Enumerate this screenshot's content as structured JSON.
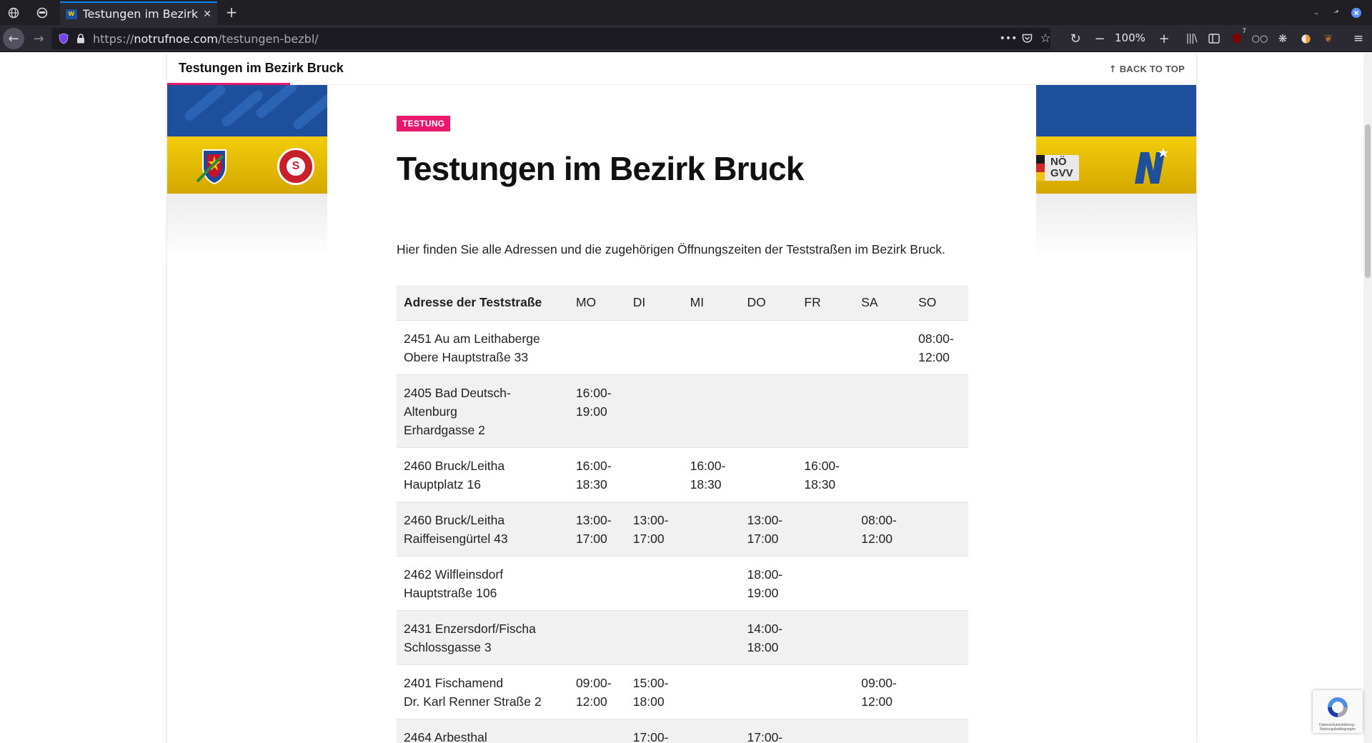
{
  "browser": {
    "tab_title": "Testungen im Bezirk Bruck",
    "favicon_text": "W",
    "url_scheme": "https://",
    "url_host": "notrufnoe.com",
    "url_path": "/testungen-bezbl/",
    "zoom": "100%",
    "extension_badge": "7",
    "colors": {
      "accent": "#0a84ff",
      "toolbar": "#2b2a33"
    }
  },
  "header": {
    "title": "Testungen im Bezirk Bruck",
    "back_to_top": "BACK TO TOP"
  },
  "banner": {
    "logo_cross_letter": "S",
    "logo_gvv_line1": "NÖ",
    "logo_gvv_line2": "GVV",
    "colors": {
      "blue": "#1e4f9c",
      "yellow": "#f2cc0a"
    }
  },
  "article": {
    "category": "TESTUNG",
    "title": "Testungen im Bezirk Bruck",
    "intro": "Hier finden Sie alle Adressen und die zugehörigen Öffnungszeiten der Teststraßen im Bezirk Bruck.",
    "accent_color": "#e8186d"
  },
  "table": {
    "headers": [
      "Adresse der Teststraße",
      "MO",
      "DI",
      "MI",
      "DO",
      "FR",
      "SA",
      "SO"
    ],
    "rows": [
      {
        "addr": [
          "2451 Au am Leithaberge",
          "Obere Hauptstraße 33"
        ],
        "times": [
          "",
          "",
          "",
          "",
          "",
          "",
          "08:00-\n12:00"
        ]
      },
      {
        "addr": [
          "2405 Bad Deutsch-",
          "Altenburg",
          "Erhardgasse 2"
        ],
        "times": [
          "16:00-\n19:00",
          "",
          "",
          "",
          "",
          "",
          ""
        ]
      },
      {
        "addr": [
          "2460 Bruck/Leitha",
          "Hauptplatz 16"
        ],
        "times": [
          "16:00-\n18:30",
          "",
          "16:00-\n18:30",
          "",
          "16:00-\n18:30",
          "",
          ""
        ]
      },
      {
        "addr": [
          "2460 Bruck/Leitha",
          "Raiffeisengürtel 43"
        ],
        "times": [
          "13:00-\n17:00",
          "13:00-\n17:00",
          "",
          "13:00-\n17:00",
          "",
          "08:00-\n12:00",
          ""
        ]
      },
      {
        "addr": [
          "2462 Wilfleinsdorf",
          "Hauptstraße 106"
        ],
        "times": [
          "",
          "",
          "",
          "18:00-\n19:00",
          "",
          "",
          ""
        ]
      },
      {
        "addr": [
          "2431 Enzersdorf/Fischa",
          "Schlossgasse 3"
        ],
        "times": [
          "",
          "",
          "",
          "14:00-\n18:00",
          "",
          "",
          ""
        ]
      },
      {
        "addr": [
          "2401 Fischamend",
          "Dr. Karl Renner Straße 2"
        ],
        "times": [
          "09:00-\n12:00",
          "15:00-\n18:00",
          "",
          "",
          "",
          "09:00-\n12:00",
          ""
        ]
      },
      {
        "addr": [
          "2464 Arbesthal"
        ],
        "times": [
          "",
          "17:00-",
          "",
          "17:00-",
          "",
          "",
          ""
        ]
      }
    ]
  },
  "recaptcha": {
    "text": "Datenschutzerklärung - Nutzungsbedingungen"
  }
}
